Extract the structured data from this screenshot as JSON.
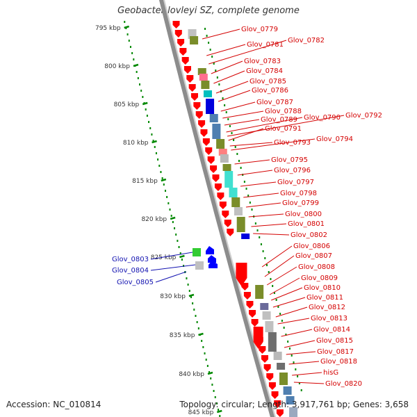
{
  "title": "Geobacter lovleyi SZ, complete genome",
  "footer": {
    "accession": "Accession: NC_010814",
    "summary": "Topology: circular; Length: 3,917,761 bp; Genes: 3,658"
  },
  "ticks": [
    {
      "label": "795 kbp"
    },
    {
      "label": "800 kbp"
    },
    {
      "label": "805 kbp"
    },
    {
      "label": "810 kbp"
    },
    {
      "label": "815 kbp"
    },
    {
      "label": "820 kbp"
    },
    {
      "label": "825 kbp"
    },
    {
      "label": "830 kbp"
    },
    {
      "label": "835 kbp"
    },
    {
      "label": "840 kbp"
    },
    {
      "label": "845 kbp"
    }
  ],
  "reverse_genes": [
    "Glov_0803",
    "Glov_0804",
    "Glov_0805"
  ],
  "forward_genes": [
    "Glov_0779",
    "Glov_0781",
    "Glov_0782",
    "Glov_0783",
    "Glov_0784",
    "Glov_0785",
    "Glov_0786",
    "Glov_0787",
    "Glov_0788",
    "Glov_0789",
    "Glov_0790",
    "Glov_0792",
    "Glov_0791",
    "Glov_0793",
    "Glov_0794",
    "Glov_0795",
    "Glov_0796",
    "Glov_0797",
    "Glov_0798",
    "Glov_0799",
    "Glov_0800",
    "Glov_0801",
    "Glov_0802",
    "Glov_0806",
    "Glov_0807",
    "Glov_0808",
    "Glov_0809",
    "Glov_0810",
    "Glov_0811",
    "Glov_0812",
    "Glov_0813",
    "Glov_0814",
    "Glov_0815",
    "Glov_0817",
    "Glov_0818",
    "hisG",
    "Glov_0820"
  ],
  "colors": {
    "forward_gene": "#ff0000",
    "reverse_gene": "#0000ff",
    "backbone": "#8c8c8c",
    "tick": "#008800",
    "fwd_label": "#d40000",
    "rev_label": "#1010b0"
  }
}
